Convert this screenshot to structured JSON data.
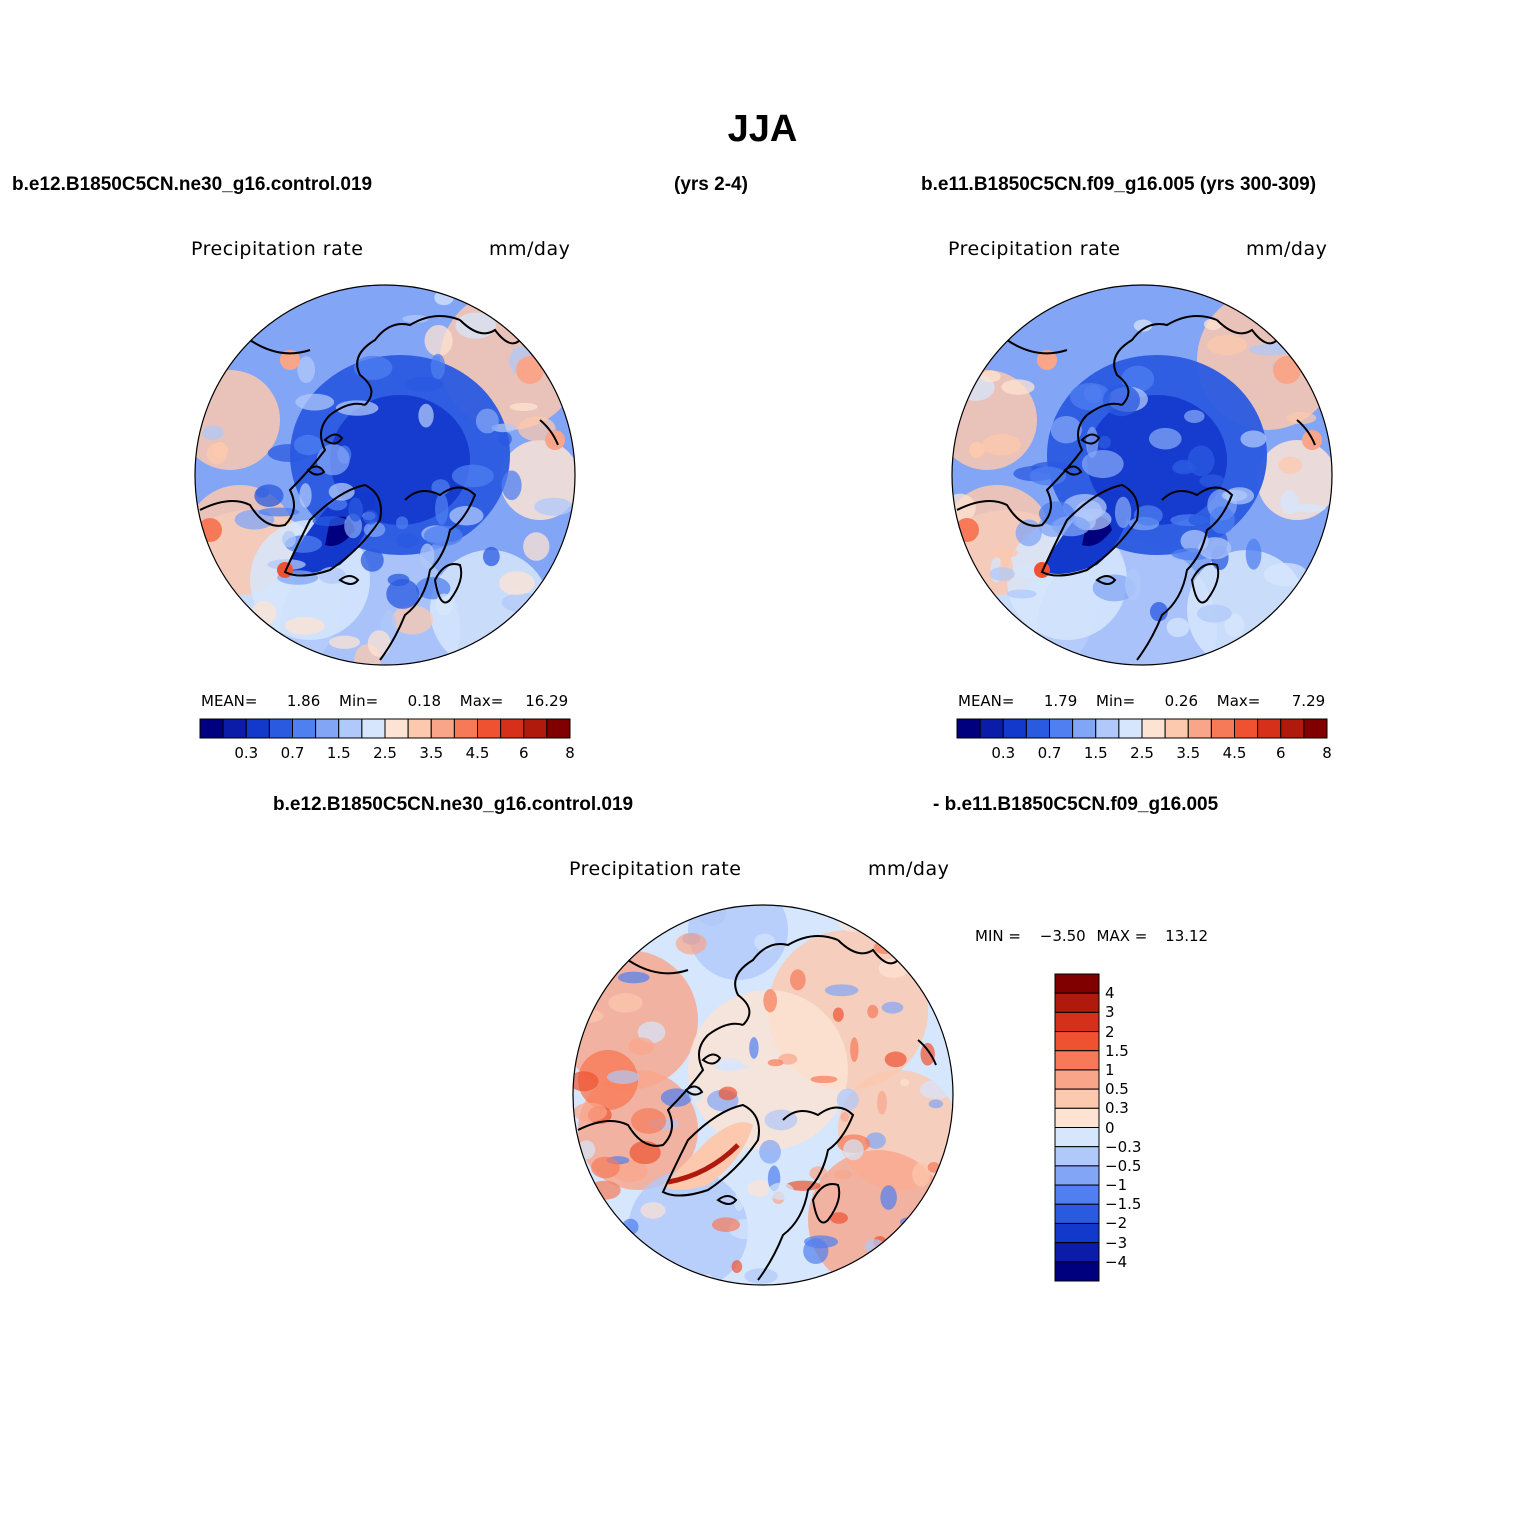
{
  "figure_title": "JJA",
  "top_left_case": "b.e12.B1850C5CN.ne30_g16.control.019",
  "top_left_years": "(yrs 2-4)",
  "top_right_case": "b.e11.B1850C5CN.f09_g16.005 (yrs 300-309)",
  "bottom_case_a": "b.e12.B1850C5CN.ne30_g16.control.019",
  "bottom_case_b": "- b.e11.B1850C5CN.f09_g16.005",
  "chart_data": [
    {
      "type": "heatmap",
      "projection": "polar stereographic (north pole)",
      "variable": "Precipitation  rate",
      "units": "mm/day",
      "stats": {
        "mean_label": "MEAN=",
        "mean": "1.86",
        "min_label": "Min=",
        "min": "0.18",
        "max_label": "Max=",
        "max": "16.29"
      },
      "colorbar": {
        "levels": [
          "0.2",
          "0.3",
          "0.5",
          "0.7",
          "1",
          "1.5",
          "2",
          "2.5",
          "3",
          "3.5",
          "4",
          "4.5",
          "5",
          "6",
          "7",
          "8",
          "9"
        ],
        "tick_labels": [
          "0.3",
          "0.7",
          "1.5",
          "2.5",
          "3.5",
          "4.5",
          "6",
          "8"
        ]
      }
    },
    {
      "type": "heatmap",
      "projection": "polar stereographic (north pole)",
      "variable": "Precipitation  rate",
      "units": "mm/day",
      "stats": {
        "mean_label": "MEAN=",
        "mean": "1.79",
        "min_label": "Min=",
        "min": "0.26",
        "max_label": "Max=",
        "max": "7.29"
      },
      "colorbar": {
        "levels": [
          "0.2",
          "0.3",
          "0.5",
          "0.7",
          "1",
          "1.5",
          "2",
          "2.5",
          "3",
          "3.5",
          "4",
          "4.5",
          "5",
          "6",
          "7",
          "8",
          "9"
        ],
        "tick_labels": [
          "0.3",
          "0.7",
          "1.5",
          "2.5",
          "3.5",
          "4.5",
          "6",
          "8"
        ]
      }
    },
    {
      "type": "heatmap",
      "projection": "polar stereographic (north pole)",
      "variable": "Precipitation  rate",
      "units": "mm/day",
      "stats": {
        "min_label": "MIN =",
        "min": "−3.50",
        "max_label": "MAX =",
        "max": "13.12"
      },
      "colorbar": {
        "orientation": "vertical",
        "levels": [
          "4",
          "3",
          "2",
          "1.5",
          "1",
          "0.5",
          "0.3",
          "0",
          "−0.3",
          "−0.5",
          "−1",
          "−1.5",
          "−2",
          "−3",
          "−4"
        ],
        "tick_labels": [
          "4",
          "3",
          "2",
          "1.5",
          "1",
          "0.5",
          "0.3",
          "0",
          "−0.3",
          "−0.5",
          "−1",
          "−1.5",
          "−2",
          "−3",
          "−4"
        ]
      }
    }
  ],
  "colors": {
    "abs_scale": [
      "#00007f",
      "#0a1ca8",
      "#1338cc",
      "#2a5ae0",
      "#4f7ff0",
      "#82a5f5",
      "#b0c8fa",
      "#d6e6fc",
      "#fde3d3",
      "#fcc8ae",
      "#f9a58a",
      "#f77a58",
      "#ee5230",
      "#d6301a",
      "#b01a0c",
      "#800000"
    ],
    "diff_scale": [
      "#800000",
      "#b01a0c",
      "#d6301a",
      "#ee5230",
      "#f77a58",
      "#f9a58a",
      "#fcc8ae",
      "#fde3d3",
      "#d6e6fc",
      "#b0c8fa",
      "#82a5f5",
      "#4f7ff0",
      "#2a5ae0",
      "#1338cc",
      "#0a1ca8",
      "#00007f"
    ]
  }
}
